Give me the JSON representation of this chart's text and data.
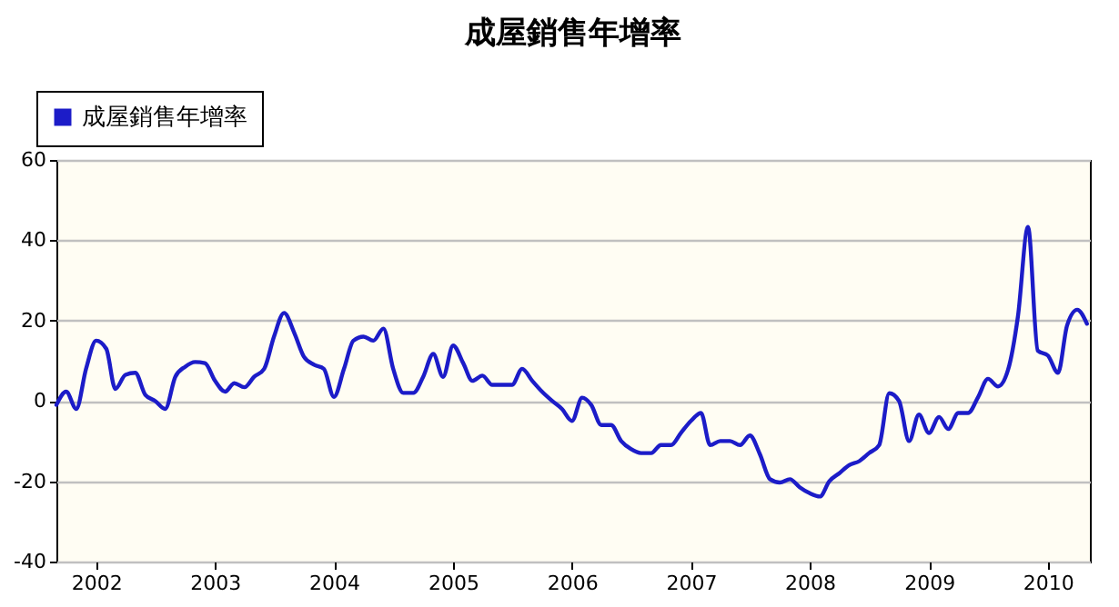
{
  "chart_data": {
    "type": "line",
    "title": "成屋銷售年增率",
    "x": [
      "2001-09",
      "2001-10",
      "2001-11",
      "2001-12",
      "2002-01",
      "2002-02",
      "2002-03",
      "2002-04",
      "2002-05",
      "2002-06",
      "2002-07",
      "2002-08",
      "2002-09",
      "2002-10",
      "2002-11",
      "2002-12",
      "2003-01",
      "2003-02",
      "2003-03",
      "2003-04",
      "2003-05",
      "2003-06",
      "2003-07",
      "2003-08",
      "2003-09",
      "2003-10",
      "2003-11",
      "2003-12",
      "2004-01",
      "2004-02",
      "2004-03",
      "2004-04",
      "2004-05",
      "2004-06",
      "2004-07",
      "2004-08",
      "2004-09",
      "2004-10",
      "2004-11",
      "2004-12",
      "2005-01",
      "2005-02",
      "2005-03",
      "2005-04",
      "2005-05",
      "2005-06",
      "2005-07",
      "2005-08",
      "2005-09",
      "2005-10",
      "2005-11",
      "2005-12",
      "2006-01",
      "2006-02",
      "2006-03",
      "2006-04",
      "2006-05",
      "2006-06",
      "2006-07",
      "2006-08",
      "2006-09",
      "2006-10",
      "2006-11",
      "2006-12",
      "2007-01",
      "2007-02",
      "2007-03",
      "2007-04",
      "2007-05",
      "2007-06",
      "2007-07",
      "2007-08",
      "2007-09",
      "2007-10",
      "2007-11",
      "2007-12",
      "2008-01",
      "2008-02",
      "2008-03",
      "2008-04",
      "2008-05",
      "2008-06",
      "2008-07",
      "2008-08",
      "2008-09",
      "2008-10",
      "2008-11",
      "2008-12",
      "2009-01",
      "2009-02",
      "2009-03",
      "2009-04",
      "2009-05",
      "2009-06",
      "2009-07",
      "2009-08",
      "2009-09",
      "2009-10",
      "2009-11",
      "2009-12",
      "2010-01",
      "2010-02",
      "2010-03",
      "2010-04",
      "2010-05"
    ],
    "series": [
      {
        "name": "成屋銷售年增率",
        "color": "#1c1cc8",
        "values": [
          -1,
          2.3,
          -2,
          8,
          15,
          13,
          3,
          6.5,
          7,
          1.5,
          0,
          -2,
          6,
          8.5,
          9.7,
          9.4,
          5,
          2.3,
          4.4,
          3.4,
          6,
          8,
          16,
          21.9,
          17,
          11,
          9,
          8,
          1,
          8,
          15,
          16,
          15,
          18,
          8,
          2,
          2,
          6,
          11.7,
          6,
          13.8,
          9.4,
          5,
          6.3,
          4,
          4,
          4,
          8,
          5,
          2.3,
          0,
          -2,
          -5,
          0.8,
          -1,
          -6,
          -6,
          -10,
          -12,
          -13,
          -13,
          -11,
          -11,
          -8,
          -5,
          -3,
          -11,
          -10,
          -10,
          -11,
          -8.6,
          -13.3,
          -19.5,
          -20.3,
          -19.5,
          -21.5,
          -23,
          -23.8,
          -20,
          -18,
          -16,
          -15,
          -13,
          -11,
          1.9,
          0,
          -10,
          -3.4,
          -8,
          -4,
          -7,
          -3,
          -3,
          1,
          5.5,
          3.6,
          7.8,
          21,
          43.3,
          12.5,
          11.3,
          7,
          18.8,
          22.7,
          19.2
        ]
      }
    ],
    "xlim": [
      "2001-09",
      "2010-05-10"
    ],
    "xticks": [
      "2002",
      "2003",
      "2004",
      "2005",
      "2006",
      "2007",
      "2008",
      "2009",
      "2010"
    ],
    "ylim": [
      -40,
      60
    ],
    "yticks": [
      -40,
      -20,
      0,
      20,
      40,
      60
    ],
    "grid": "y",
    "legend": "top left",
    "marker": "none",
    "line_style": "solid"
  }
}
